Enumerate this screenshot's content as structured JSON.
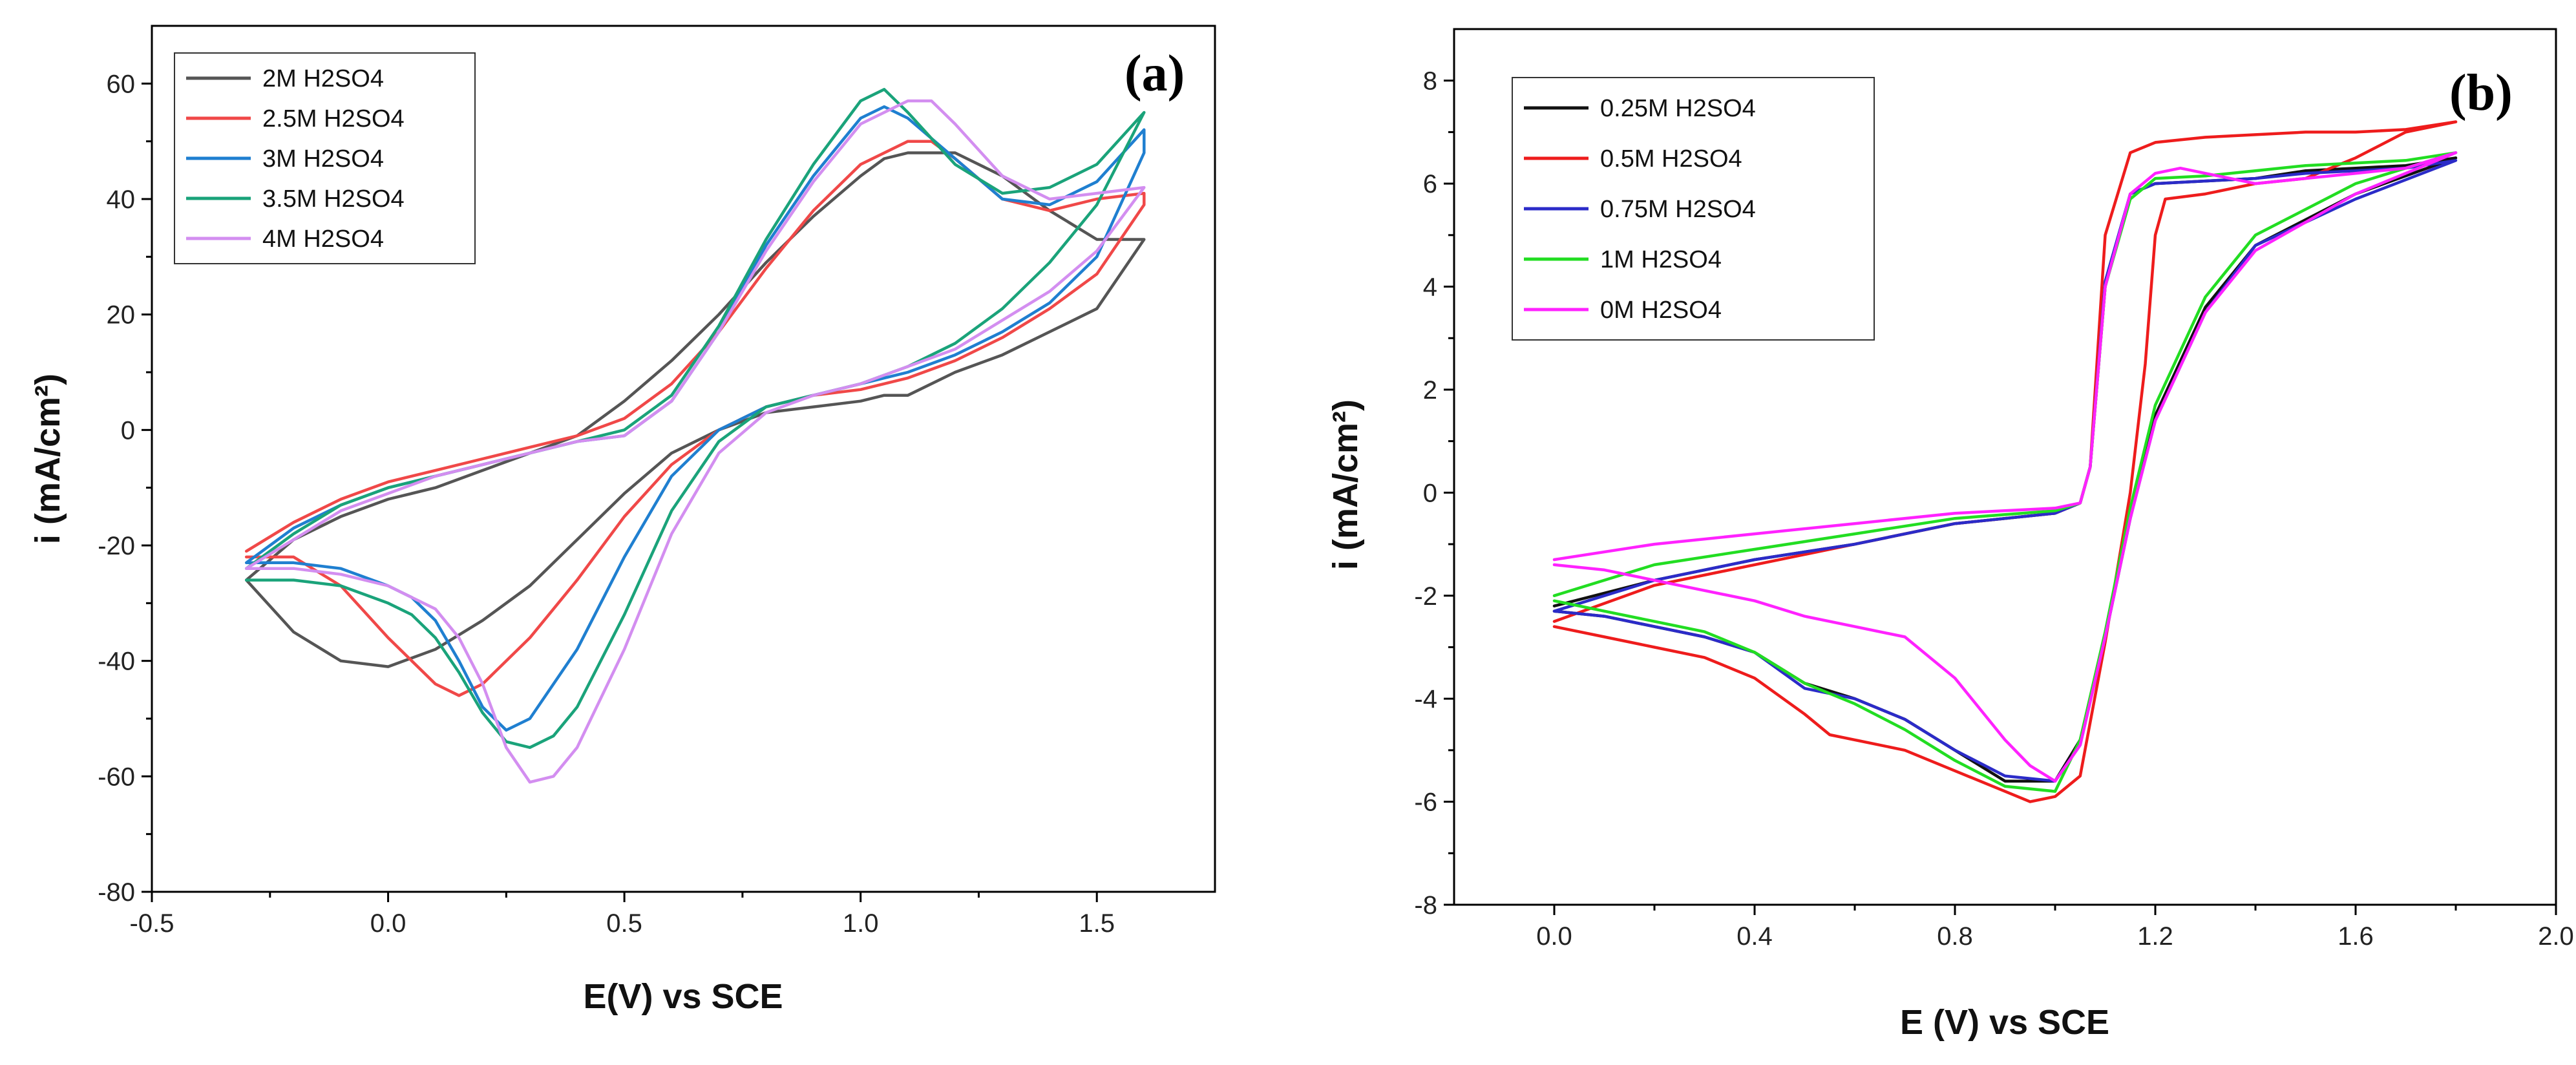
{
  "chart_data": [
    {
      "type": "line",
      "panel_label": "(a)",
      "xlabel": "E(V) vs SCE",
      "ylabel": "i (mA/cm²)",
      "xlim": [
        -0.5,
        1.75
      ],
      "ylim": [
        -80,
        70
      ],
      "xticks": [
        -0.5,
        0.0,
        0.5,
        1.0,
        1.5
      ],
      "xtick_labels": [
        "-0.5",
        "0.0",
        "0.5",
        "1.0",
        "1.5"
      ],
      "yticks": [
        -80,
        -60,
        -40,
        -20,
        0,
        20,
        40,
        60
      ],
      "ytick_labels": [
        "-80",
        "-60",
        "-40",
        "-20",
        "0",
        "20",
        "40",
        "60"
      ],
      "legend_position": "top-left",
      "series": [
        {
          "name": "2M H2SO4",
          "color": "#555555",
          "x": [
            -0.3,
            -0.2,
            -0.1,
            0.0,
            0.1,
            0.2,
            0.3,
            0.4,
            0.5,
            0.6,
            0.7,
            0.8,
            0.9,
            1.0,
            1.05,
            1.1,
            1.2,
            1.3,
            1.4,
            1.5,
            1.6,
            1.6,
            1.5,
            1.4,
            1.3,
            1.2,
            1.1,
            1.05,
            1.0,
            0.9,
            0.8,
            0.7,
            0.6,
            0.5,
            0.4,
            0.3,
            0.2,
            0.1,
            0.0,
            -0.1,
            -0.2,
            -0.3
          ],
          "y": [
            -26,
            -35,
            -40,
            -41,
            -38,
            -33,
            -27,
            -19,
            -11,
            -4,
            0,
            3,
            4,
            5,
            6,
            6,
            10,
            13,
            17,
            21,
            33,
            33,
            33,
            38,
            44,
            48,
            48,
            47,
            44,
            37,
            29,
            20,
            12,
            5,
            -1,
            -4,
            -7,
            -10,
            -12,
            -15,
            -19,
            -26
          ]
        },
        {
          "name": "2.5M H2SO4",
          "color": "#f04848",
          "x": [
            -0.3,
            -0.2,
            -0.1,
            0.0,
            0.1,
            0.15,
            0.2,
            0.3,
            0.4,
            0.5,
            0.6,
            0.7,
            0.8,
            0.9,
            1.0,
            1.1,
            1.2,
            1.3,
            1.4,
            1.5,
            1.6,
            1.6,
            1.5,
            1.4,
            1.3,
            1.2,
            1.15,
            1.1,
            1.0,
            0.9,
            0.8,
            0.7,
            0.6,
            0.5,
            0.4,
            0.3,
            0.2,
            0.1,
            0.0,
            -0.1,
            -0.2,
            -0.3
          ],
          "y": [
            -22,
            -22,
            -27,
            -36,
            -44,
            -46,
            -44,
            -36,
            -26,
            -15,
            -6,
            0,
            4,
            6,
            7,
            9,
            12,
            16,
            21,
            27,
            39,
            41,
            40,
            38,
            40,
            47,
            50,
            50,
            46,
            38,
            28,
            17,
            8,
            2,
            -1,
            -3,
            -5,
            -7,
            -9,
            -12,
            -16,
            -21
          ]
        },
        {
          "name": "3M H2SO4",
          "color": "#1f7fd0",
          "x": [
            -0.3,
            -0.2,
            -0.1,
            0.0,
            0.05,
            0.1,
            0.15,
            0.2,
            0.25,
            0.3,
            0.4,
            0.5,
            0.6,
            0.7,
            0.8,
            0.9,
            1.0,
            1.1,
            1.2,
            1.3,
            1.4,
            1.5,
            1.6,
            1.6,
            1.5,
            1.4,
            1.3,
            1.2,
            1.1,
            1.05,
            1.0,
            0.9,
            0.8,
            0.7,
            0.6,
            0.5,
            0.4,
            0.3,
            0.2,
            0.1,
            0.0,
            -0.1,
            -0.2,
            -0.3
          ],
          "y": [
            -23,
            -23,
            -24,
            -27,
            -29,
            -33,
            -40,
            -48,
            -52,
            -50,
            -38,
            -22,
            -8,
            0,
            4,
            6,
            8,
            10,
            13,
            17,
            22,
            30,
            48,
            52,
            43,
            39,
            40,
            47,
            54,
            56,
            54,
            44,
            32,
            17,
            5,
            -1,
            -2,
            -4,
            -6,
            -8,
            -10,
            -13,
            -17,
            -23
          ]
        },
        {
          "name": "3.5M H2SO4",
          "color": "#1aa37a",
          "x": [
            -0.3,
            -0.2,
            -0.1,
            0.0,
            0.05,
            0.1,
            0.15,
            0.2,
            0.25,
            0.3,
            0.35,
            0.4,
            0.5,
            0.6,
            0.7,
            0.8,
            0.9,
            1.0,
            1.1,
            1.2,
            1.3,
            1.4,
            1.5,
            1.6,
            1.6,
            1.5,
            1.4,
            1.3,
            1.2,
            1.1,
            1.05,
            1.0,
            0.9,
            0.8,
            0.7,
            0.6,
            0.5,
            0.4,
            0.3,
            0.2,
            0.1,
            0.0,
            -0.1,
            -0.2,
            -0.3
          ],
          "y": [
            -26,
            -26,
            -27,
            -30,
            -32,
            -36,
            -42,
            -49,
            -54,
            -55,
            -53,
            -48,
            -32,
            -14,
            -2,
            4,
            6,
            8,
            11,
            15,
            21,
            29,
            39,
            55,
            55,
            46,
            42,
            41,
            46,
            55,
            59,
            57,
            46,
            33,
            18,
            6,
            0,
            -2,
            -4,
            -6,
            -8,
            -10,
            -13,
            -18,
            -24
          ]
        },
        {
          "name": "4M H2SO4",
          "color": "#d38ef0",
          "x": [
            -0.3,
            -0.2,
            -0.1,
            0.0,
            0.1,
            0.15,
            0.2,
            0.25,
            0.3,
            0.35,
            0.4,
            0.5,
            0.6,
            0.7,
            0.8,
            0.9,
            1.0,
            1.1,
            1.2,
            1.3,
            1.4,
            1.5,
            1.6,
            1.6,
            1.5,
            1.4,
            1.3,
            1.2,
            1.15,
            1.1,
            1.0,
            0.9,
            0.8,
            0.7,
            0.6,
            0.5,
            0.4,
            0.3,
            0.2,
            0.1,
            0.0,
            -0.1,
            -0.2,
            -0.3
          ],
          "y": [
            -24,
            -24,
            -25,
            -27,
            -31,
            -36,
            -44,
            -55,
            -61,
            -60,
            -55,
            -38,
            -18,
            -4,
            3,
            6,
            8,
            11,
            14,
            19,
            24,
            31,
            42,
            42,
            41,
            40,
            44,
            53,
            57,
            57,
            53,
            43,
            31,
            17,
            5,
            -1,
            -2,
            -4,
            -6,
            -8,
            -11,
            -14,
            -19,
            -24
          ]
        }
      ]
    },
    {
      "type": "line",
      "panel_label": "(b)",
      "xlabel": "E (V) vs SCE",
      "ylabel": "i (mA/cm²)",
      "xlim": [
        -0.2,
        2.0
      ],
      "ylim": [
        -8,
        9
      ],
      "xticks": [
        0.0,
        0.4,
        0.8,
        1.2,
        1.6,
        2.0
      ],
      "xtick_labels": [
        "0.0",
        "0.4",
        "0.8",
        "1.2",
        "1.6",
        "2.0"
      ],
      "yticks": [
        -8,
        -6,
        -4,
        -2,
        0,
        2,
        4,
        6,
        8
      ],
      "ytick_labels": [
        "-8",
        "-6",
        "-4",
        "-2",
        "0",
        "2",
        "4",
        "6",
        "8"
      ],
      "legend_position": "top-left",
      "series": [
        {
          "name": "0.25M H2SO4",
          "color": "#111111",
          "x": [
            0.0,
            0.2,
            0.4,
            0.6,
            0.8,
            1.0,
            1.05,
            1.07,
            1.1,
            1.15,
            1.2,
            1.3,
            1.4,
            1.5,
            1.6,
            1.7,
            1.8,
            1.8,
            1.6,
            1.4,
            1.3,
            1.2,
            1.15,
            1.1,
            1.05,
            1.0,
            0.9,
            0.8,
            0.7,
            0.6,
            0.5,
            0.4,
            0.3,
            0.2,
            0.1,
            0.0
          ],
          "y": [
            -2.2,
            -1.7,
            -1.3,
            -1.0,
            -0.6,
            -0.4,
            -0.2,
            0.5,
            4.0,
            5.8,
            6.0,
            6.05,
            6.1,
            6.25,
            6.3,
            6.35,
            6.5,
            6.5,
            5.8,
            4.8,
            3.6,
            1.5,
            -0.5,
            -2.8,
            -4.8,
            -5.6,
            -5.6,
            -5.0,
            -4.4,
            -4.0,
            -3.7,
            -3.1,
            -2.8,
            -2.6,
            -2.4,
            -2.3
          ]
        },
        {
          "name": "0.5M H2SO4",
          "color": "#ee1c1c",
          "x": [
            0.0,
            0.2,
            0.4,
            0.6,
            0.8,
            1.0,
            1.05,
            1.07,
            1.1,
            1.15,
            1.2,
            1.3,
            1.4,
            1.5,
            1.6,
            1.7,
            1.8,
            1.8,
            1.7,
            1.6,
            1.5,
            1.4,
            1.3,
            1.22,
            1.2,
            1.18,
            1.15,
            1.1,
            1.05,
            1.0,
            0.95,
            0.9,
            0.8,
            0.7,
            0.6,
            0.55,
            0.5,
            0.4,
            0.3,
            0.2,
            0.1,
            0.0
          ],
          "y": [
            -2.5,
            -1.8,
            -1.4,
            -1.0,
            -0.6,
            -0.4,
            -0.2,
            0.5,
            5.0,
            6.6,
            6.8,
            6.9,
            6.95,
            7.0,
            7.0,
            7.05,
            7.2,
            7.2,
            7.0,
            6.5,
            6.1,
            6.0,
            5.8,
            5.7,
            5.0,
            2.5,
            0.0,
            -2.9,
            -5.5,
            -5.9,
            -6.0,
            -5.8,
            -5.4,
            -5.0,
            -4.8,
            -4.7,
            -4.3,
            -3.6,
            -3.2,
            -3.0,
            -2.8,
            -2.6
          ]
        },
        {
          "name": "0.75M H2SO4",
          "color": "#2b2bc8",
          "x": [
            0.0,
            0.2,
            0.4,
            0.6,
            0.8,
            1.0,
            1.05,
            1.07,
            1.1,
            1.15,
            1.2,
            1.3,
            1.4,
            1.5,
            1.6,
            1.7,
            1.8,
            1.8,
            1.6,
            1.4,
            1.3,
            1.2,
            1.15,
            1.1,
            1.05,
            1.0,
            0.9,
            0.8,
            0.7,
            0.6,
            0.5,
            0.4,
            0.3,
            0.2,
            0.1,
            0.0
          ],
          "y": [
            -2.3,
            -1.7,
            -1.3,
            -1.0,
            -0.6,
            -0.4,
            -0.2,
            0.5,
            4.1,
            5.8,
            6.0,
            6.05,
            6.1,
            6.2,
            6.25,
            6.3,
            6.45,
            6.45,
            5.7,
            4.8,
            3.5,
            1.4,
            -0.5,
            -2.8,
            -4.9,
            -5.6,
            -5.5,
            -5.0,
            -4.4,
            -4.0,
            -3.8,
            -3.1,
            -2.8,
            -2.6,
            -2.4,
            -2.3
          ]
        },
        {
          "name": "1M H2SO4",
          "color": "#22dd22",
          "x": [
            0.0,
            0.2,
            0.4,
            0.6,
            0.8,
            1.0,
            1.05,
            1.07,
            1.1,
            1.15,
            1.2,
            1.3,
            1.4,
            1.5,
            1.6,
            1.7,
            1.8,
            1.8,
            1.6,
            1.4,
            1.3,
            1.2,
            1.15,
            1.1,
            1.05,
            1.0,
            0.9,
            0.8,
            0.7,
            0.6,
            0.5,
            0.4,
            0.3,
            0.2,
            0.1,
            0.0
          ],
          "y": [
            -2.0,
            -1.4,
            -1.1,
            -0.8,
            -0.5,
            -0.35,
            -0.2,
            0.5,
            4.0,
            5.7,
            6.1,
            6.15,
            6.25,
            6.35,
            6.4,
            6.45,
            6.6,
            6.6,
            6.0,
            5.0,
            3.8,
            1.7,
            -0.3,
            -2.7,
            -4.8,
            -5.8,
            -5.7,
            -5.2,
            -4.6,
            -4.1,
            -3.7,
            -3.1,
            -2.7,
            -2.5,
            -2.3,
            -2.1
          ]
        },
        {
          "name": "0M H2SO4",
          "color": "#ff22ff",
          "x": [
            0.0,
            0.2,
            0.4,
            0.6,
            0.8,
            1.0,
            1.05,
            1.07,
            1.1,
            1.15,
            1.2,
            1.25,
            1.3,
            1.4,
            1.5,
            1.6,
            1.7,
            1.8,
            1.8,
            1.6,
            1.4,
            1.3,
            1.2,
            1.15,
            1.1,
            1.05,
            1.0,
            0.95,
            0.9,
            0.8,
            0.7,
            0.6,
            0.5,
            0.4,
            0.3,
            0.2,
            0.1,
            0.0
          ],
          "y": [
            -1.3,
            -1.0,
            -0.8,
            -0.6,
            -0.4,
            -0.3,
            -0.2,
            0.5,
            4.0,
            5.8,
            6.2,
            6.3,
            6.2,
            6.0,
            6.1,
            6.2,
            6.3,
            6.6,
            6.6,
            5.8,
            4.7,
            3.5,
            1.4,
            -0.5,
            -2.8,
            -4.9,
            -5.6,
            -5.3,
            -4.8,
            -3.6,
            -2.8,
            -2.6,
            -2.4,
            -2.1,
            -1.9,
            -1.7,
            -1.5,
            -1.4
          ]
        }
      ]
    }
  ]
}
